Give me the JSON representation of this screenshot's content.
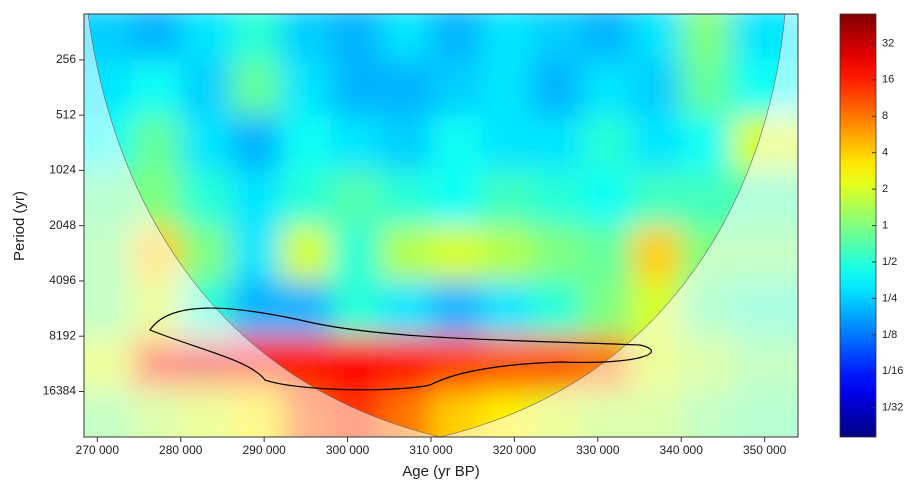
{
  "chart_data": {
    "type": "heatmap",
    "x_label": "Age (yr BP)",
    "y_label": "Period (yr)",
    "x": [
      271000,
      277000,
      283000,
      289000,
      295000,
      301000,
      307000,
      313000,
      319000,
      325000,
      331000,
      337000,
      343000,
      349000
    ],
    "y": [
      181,
      362,
      724,
      1448,
      2896,
      5793,
      11585,
      23170
    ],
    "z": [
      [
        0.25,
        0.2,
        0.3,
        0.5,
        0.25,
        0.2,
        0.3,
        0.2,
        0.3,
        0.25,
        0.2,
        0.3,
        1,
        0.3
      ],
      [
        0.3,
        0.4,
        0.25,
        0.8,
        0.3,
        0.2,
        0.2,
        0.25,
        0.3,
        0.2,
        0.3,
        0.25,
        0.8,
        0.4
      ],
      [
        0.4,
        0.8,
        0.3,
        0.2,
        0.4,
        0.3,
        0.25,
        0.4,
        0.3,
        0.3,
        0.5,
        0.3,
        0.4,
        2
      ],
      [
        0.8,
        1,
        0.5,
        0.3,
        0.5,
        0.7,
        0.5,
        0.4,
        0.6,
        0.5,
        0.4,
        0.6,
        0.6,
        0.7
      ],
      [
        1,
        4,
        1,
        0.3,
        2,
        0.5,
        1.5,
        2,
        1.5,
        1,
        0.8,
        4,
        1,
        1
      ],
      [
        1,
        2,
        0.5,
        0.2,
        0.2,
        0.5,
        0.3,
        0.2,
        0.3,
        0.5,
        1,
        2,
        0.8,
        0.6
      ],
      [
        2,
        16,
        24,
        16,
        16,
        20,
        16,
        12,
        10,
        10,
        8,
        2,
        1.5,
        1
      ],
      [
        1,
        1.5,
        2,
        3,
        10,
        14,
        8,
        4,
        3,
        2,
        1.5,
        1.5,
        1,
        0.8
      ]
    ],
    "xlim": [
      268400,
      354000
    ],
    "ylim": [
      29000,
      144
    ],
    "y_log_base": 2,
    "xticks": [
      {
        "value": 270000,
        "label": "270 000"
      },
      {
        "value": 280000,
        "label": "280 000"
      },
      {
        "value": 290000,
        "label": "290 000"
      },
      {
        "value": 300000,
        "label": "300 000"
      },
      {
        "value": 310000,
        "label": "310 000"
      },
      {
        "value": 320000,
        "label": "320 000"
      },
      {
        "value": 330000,
        "label": "330 000"
      },
      {
        "value": 340000,
        "label": "340 000"
      },
      {
        "value": 350000,
        "label": "350 000"
      }
    ],
    "yticks": [
      256,
      512,
      1024,
      2048,
      4096,
      8192,
      16384
    ],
    "colorbar": {
      "colormap": "jet",
      "log_base": 2,
      "lim": [
        0.0179,
        56
      ],
      "ticks": [
        32,
        16,
        8,
        4,
        2,
        1,
        {
          "value": 0.5,
          "label": "1/2"
        },
        {
          "value": 0.25,
          "label": "1/4"
        },
        {
          "value": 0.125,
          "label": "1/8"
        },
        {
          "value": 0.0625,
          "label": "1/16"
        },
        {
          "value": 0.03125,
          "label": "1/32"
        }
      ]
    }
  }
}
